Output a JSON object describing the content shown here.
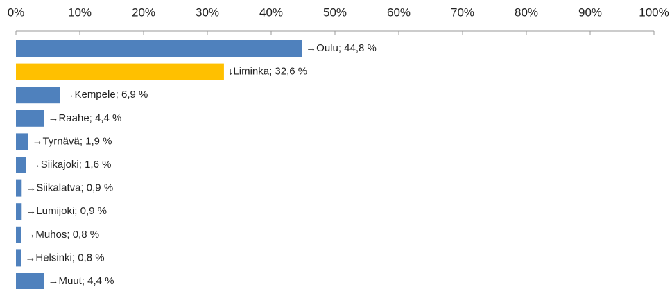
{
  "chart_data": {
    "type": "barh",
    "values": [
      44.8,
      32.6,
      6.9,
      4.4,
      1.9,
      1.6,
      0.9,
      0.9,
      0.8,
      0.8,
      4.4
    ],
    "value_labels": [
      "→Oulu; 44,8 %",
      "↓Liminka; 32,6 %",
      "→Kempele; 6,9 %",
      "→Raahe; 4,4 %",
      "→Tyrnävä; 1,9 %",
      "→Siikajoki; 1,6 %",
      "→Siikalatva; 0,9 %",
      "→Lumijoki; 0,9 %",
      "→Muhos; 0,8 %",
      "→Helsinki; 0,8 %",
      "→Muut; 4,4 %"
    ],
    "colors": [
      "#4f81bd",
      "#ffc000",
      "#4f81bd",
      "#4f81bd",
      "#4f81bd",
      "#4f81bd",
      "#4f81bd",
      "#4f81bd",
      "#4f81bd",
      "#4f81bd",
      "#4f81bd"
    ],
    "xlim": [
      0,
      100
    ],
    "xticks": [
      {
        "value": 0,
        "label": "0%"
      },
      {
        "value": 10,
        "label": "10%"
      },
      {
        "value": 20,
        "label": "20%"
      },
      {
        "value": 30,
        "label": "30%"
      },
      {
        "value": 40,
        "label": "40%"
      },
      {
        "value": 50,
        "label": "50%"
      },
      {
        "value": 60,
        "label": "60%"
      },
      {
        "value": 70,
        "label": "70%"
      },
      {
        "value": 80,
        "label": "80%"
      },
      {
        "value": 90,
        "label": "90%"
      },
      {
        "value": 100,
        "label": "100%"
      }
    ]
  }
}
